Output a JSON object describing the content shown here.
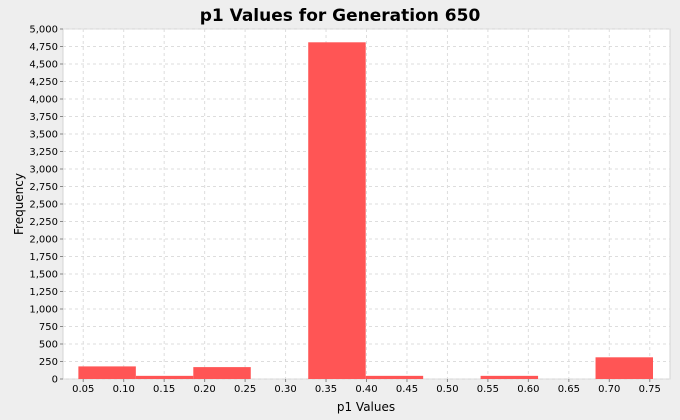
{
  "chart_data": {
    "type": "bar",
    "title": "p1 Values for Generation 650",
    "xlabel": "p1 Values",
    "ylabel": "Frequency",
    "xlim": [
      0.025,
      0.775
    ],
    "ylim": [
      0,
      5000
    ],
    "x_ticks": [
      "0.05",
      "0.10",
      "0.15",
      "0.20",
      "0.25",
      "0.30",
      "0.35",
      "0.40",
      "0.45",
      "0.50",
      "0.55",
      "0.60",
      "0.65",
      "0.70",
      "0.75"
    ],
    "y_ticks": [
      "0",
      "250",
      "500",
      "750",
      "1,000",
      "1,250",
      "1,500",
      "1,750",
      "2,000",
      "2,250",
      "2,500",
      "2,750",
      "3,000",
      "3,250",
      "3,500",
      "3,750",
      "4,000",
      "4,250",
      "4,500",
      "4,750",
      "5,000"
    ],
    "bins": [
      {
        "x0": 0.044,
        "x1": 0.115,
        "value": 180
      },
      {
        "x0": 0.115,
        "x1": 0.186,
        "value": 45
      },
      {
        "x0": 0.186,
        "x1": 0.257,
        "value": 170
      },
      {
        "x0": 0.257,
        "x1": 0.328,
        "value": 0
      },
      {
        "x0": 0.328,
        "x1": 0.399,
        "value": 4810
      },
      {
        "x0": 0.399,
        "x1": 0.47,
        "value": 45
      },
      {
        "x0": 0.47,
        "x1": 0.541,
        "value": 0
      },
      {
        "x0": 0.541,
        "x1": 0.612,
        "value": 45
      },
      {
        "x0": 0.612,
        "x1": 0.683,
        "value": 0
      },
      {
        "x0": 0.683,
        "x1": 0.754,
        "value": 310
      }
    ],
    "bar_color": "#ff5555",
    "background_color": "#eeeeee",
    "plot_background": "#ffffff",
    "grid": true,
    "grid_color": "#dddddd"
  }
}
